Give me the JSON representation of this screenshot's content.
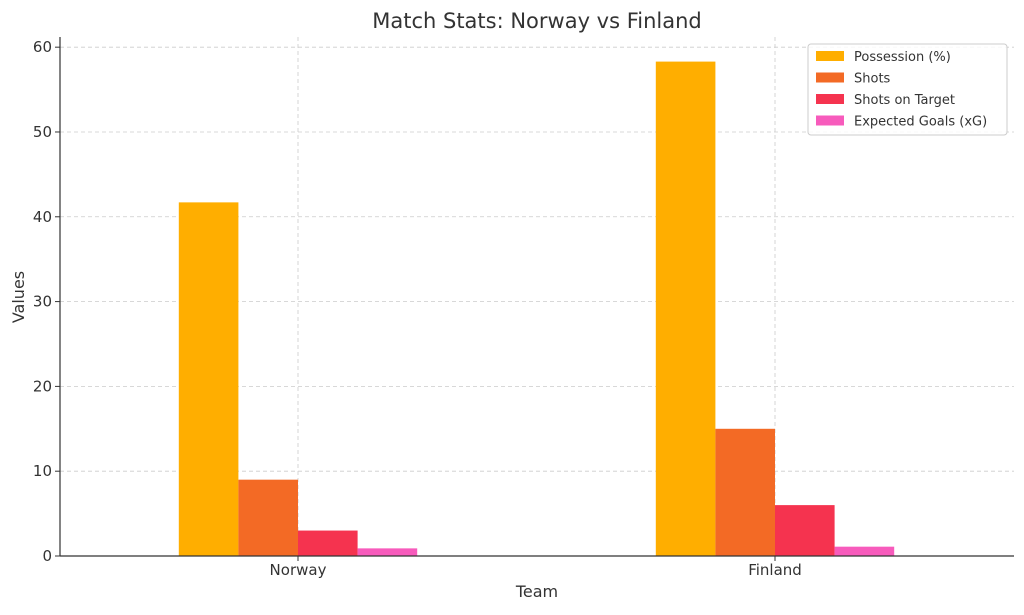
{
  "chart_data": {
    "type": "bar",
    "title": "Match Stats: Norway vs Finland",
    "xlabel": "Team",
    "ylabel": "Values",
    "categories": [
      "Norway",
      "Finland"
    ],
    "series": [
      {
        "name": "Possession (%)",
        "values": [
          41.7,
          58.3
        ],
        "color": "#FFAE00"
      },
      {
        "name": "Shots",
        "values": [
          9,
          15
        ],
        "color": "#F36A25"
      },
      {
        "name": "Shots on Target",
        "values": [
          3,
          6
        ],
        "color": "#F5334F"
      },
      {
        "name": "Expected Goals (xG)",
        "values": [
          0.9,
          1.1
        ],
        "color": "#F75BBC"
      }
    ],
    "ylim": [
      0,
      61.2
    ],
    "yticks": [
      0,
      10,
      20,
      30,
      40,
      50,
      60
    ],
    "grid": true,
    "legend_position": "top-right"
  }
}
